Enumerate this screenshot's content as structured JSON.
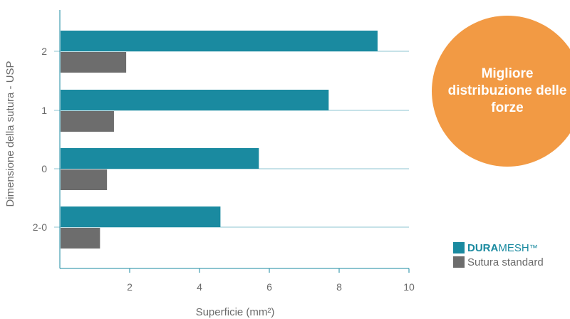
{
  "chart_data": {
    "type": "bar",
    "orientation": "horizontal",
    "categories": [
      "2",
      "1",
      "0",
      "2-0"
    ],
    "series": [
      {
        "name": "DURAMESH™",
        "color": "#1a8aa0",
        "values": [
          9.1,
          7.7,
          5.7,
          4.6
        ]
      },
      {
        "name": "Sutura standard",
        "color": "#6d6d6d",
        "values": [
          1.9,
          1.55,
          1.35,
          1.15
        ]
      }
    ],
    "xlabel": "Superficie (mm²)",
    "ylabel": "Dimensione della sutura - USP",
    "xlim": [
      0,
      10
    ],
    "x_ticks": [
      "2",
      "4",
      "6",
      "8",
      "10"
    ],
    "grid": "horizontal"
  },
  "badge": {
    "text": "Migliore distribuzione delle forze",
    "color": "#f29a44"
  },
  "legend": {
    "items": [
      {
        "brand_bold": "DURA",
        "brand_rest": "MESH",
        "trademark": "™",
        "color": "#1a8aa0"
      },
      {
        "label": "Sutura standard",
        "color": "#6d6d6d"
      }
    ]
  }
}
